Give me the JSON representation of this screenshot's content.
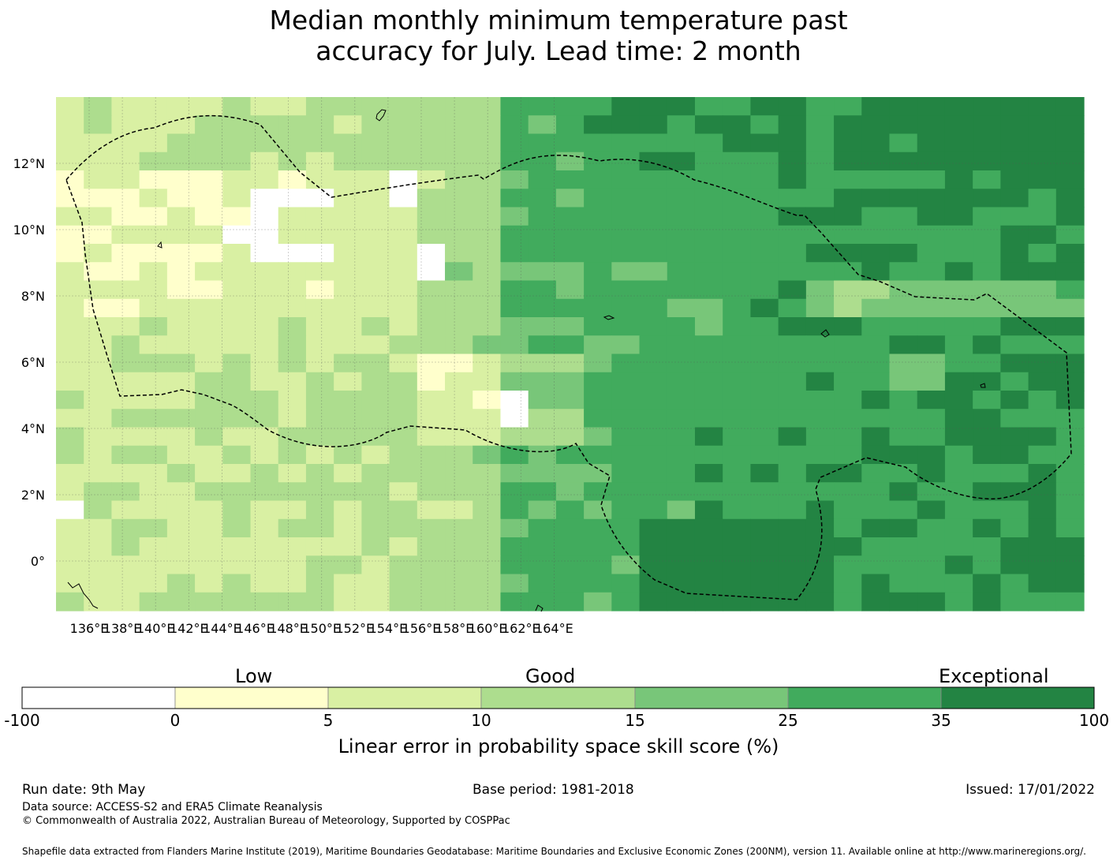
{
  "title_line1": "Median monthly minimum temperature past",
  "title_line2": "accuracy for July. Lead time: 2 month",
  "map": {
    "lon_labels": [
      "136°E",
      "138°E",
      "140°E",
      "142°E",
      "144°E",
      "146°E",
      "148°E",
      "150°E",
      "152°E",
      "154°E",
      "156°E",
      "158°E",
      "160°E",
      "162°E",
      "164°E"
    ],
    "lat_labels": [
      "12°N",
      "10°N",
      "8°N",
      "6°N",
      "4°N",
      "2°N",
      "0°"
    ],
    "grid_cols": 37,
    "grid_rows": 28,
    "colors": [
      "#ffffff",
      "#ffffcc",
      "#d9f0a3",
      "#addd8e",
      "#78c679",
      "#41ab5d",
      "#238443"
    ]
  },
  "colorbar": {
    "category_labels": [
      "Low",
      "Good",
      "Exceptional"
    ],
    "ticks": [
      "-100",
      "0",
      "5",
      "10",
      "15",
      "25",
      "35",
      "100"
    ],
    "colors": [
      "#ffffff",
      "#ffffcc",
      "#d9f0a3",
      "#addd8e",
      "#78c679",
      "#41ab5d",
      "#238443"
    ],
    "title": "Linear error in probability space skill score (%)"
  },
  "footer": {
    "run_date": "Run date: 9th May",
    "base_period": "Base period: 1981-2018",
    "issued": "Issued: 17/01/2022",
    "data_source": "Data source: ACCESS-S2 and ERA5 Climate Reanalysis",
    "copyright": "© Commonwealth of Australia 2022, Australian Bureau of Meteorology, Supported by COSPPac",
    "shapefile": "Shapefile data extracted from Flanders Marine Institute (2019), Maritime Boundaries Geodatabase: Maritime Boundaries and Exclusive Economic Zones (200NM), version 11. Available online at http://www.marineregions.org/."
  }
}
